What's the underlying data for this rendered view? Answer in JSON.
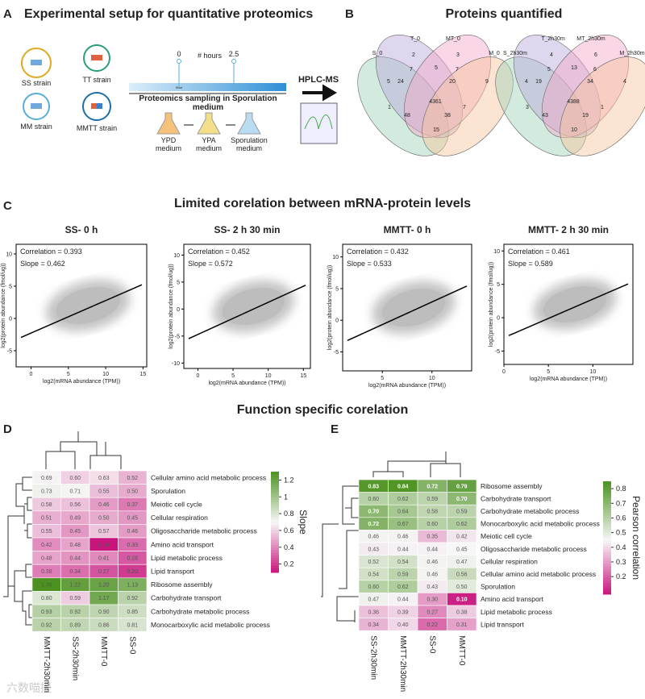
{
  "panel_a": {
    "letter": "A",
    "title": "Experimental setup for quantitative proteomics",
    "strains": [
      "SS strain",
      "TT strain",
      "MM strain",
      "MMTT strain"
    ],
    "hours_label": "# hours",
    "timepoints": [
      0,
      2.5
    ],
    "start": "Start",
    "sampling": "Proteomics sampling in Sporulation",
    "sampling2": "medium",
    "media": [
      [
        "YPD",
        "medium"
      ],
      [
        "YPA",
        "medium"
      ],
      [
        "Sporulation",
        "medium"
      ]
    ],
    "hplc": "HPLC-MS"
  },
  "panel_b": {
    "letter": "B",
    "title": "Proteins quantified",
    "venns": [
      {
        "sets": [
          "S_0",
          "T_0",
          "MT_0",
          "M_0"
        ],
        "regions": [
          5,
          2,
          3,
          9,
          7,
          5,
          7,
          24,
          20,
          4361,
          1,
          7,
          48,
          38,
          15
        ]
      },
      {
        "sets": [
          "S_2h30m",
          "T_2h30m",
          "MT_2h30m",
          "M_2h30m"
        ],
        "regions": [
          4,
          4,
          6,
          4,
          5,
          13,
          6,
          19,
          34,
          4388,
          3,
          1,
          43,
          19,
          10
        ]
      }
    ]
  },
  "panel_c": {
    "letter": "C",
    "title": "Limited corelation between mRNA-protein levels",
    "xlabel": "log2(mRNA abundance (TPM))",
    "ylabel": "log2(protein abundance (fmol/ug))",
    "plots": [
      {
        "title": "SS- 0 h",
        "correlation": "Correlation = 0.393",
        "slope": "Slope = 0.462",
        "xlim": [
          -2,
          15.5
        ],
        "xticks": [
          0,
          5,
          10,
          15
        ],
        "ylim": [
          -7.5,
          11.5
        ],
        "yticks": [
          -5,
          0,
          5,
          10
        ]
      },
      {
        "title": "SS- 2 h 30 min",
        "correlation": "Correlation = 0.452",
        "slope": "Slope = 0.572",
        "xlim": [
          -2,
          16
        ],
        "xticks": [
          0,
          5,
          10,
          15
        ],
        "ylim": [
          -11,
          12
        ],
        "yticks": [
          -10,
          -5,
          0,
          5,
          10
        ]
      },
      {
        "title": "MMTT- 0 h",
        "correlation": "Correlation = 0.432",
        "slope": "Slope = 0.533",
        "xlim": [
          1,
          14
        ],
        "xticks": [
          5,
          10
        ],
        "ylim": [
          -8,
          12
        ],
        "yticks": [
          -5,
          0,
          5,
          10
        ]
      },
      {
        "title": "MMTT- 2 h 30 min",
        "correlation": "Correlation = 0.461",
        "slope": "Slope = 0.589",
        "xlim": [
          0,
          14.5
        ],
        "xticks": [
          0,
          5,
          10
        ],
        "ylim": [
          -7,
          11
        ],
        "yticks": [
          -5,
          0,
          5,
          10
        ]
      }
    ]
  },
  "function_title": "Function specific corelation",
  "panel_d": {
    "letter": "D",
    "colorbar_label": "Slope",
    "colorbar_lim": [
      0.1,
      1.3
    ],
    "colorbar_ticks": [
      0.2,
      0.4,
      0.6,
      0.8,
      1,
      1.2
    ],
    "columns": [
      "MMTT-2h30min",
      "SS-2h30min",
      "MMTT-0",
      "SS-0"
    ],
    "rows": [
      "Cellular amino acid metabolic process",
      "Sporulation",
      "Meiotic cell cycle",
      "Cellular respiration",
      "Oligosaccharide metabolic process",
      "Amino acid transport",
      "Lipid metabolic process",
      "Lipid transport",
      "Ribosome assembly",
      "Carbohydrate transport",
      "Carbohydrate metabolic process",
      "Monocarboxylic acid metabolic process"
    ],
    "values": [
      [
        0.69,
        0.6,
        0.63,
        0.52
      ],
      [
        0.73,
        0.71,
        0.55,
        0.5
      ],
      [
        0.58,
        0.56,
        0.46,
        0.37
      ],
      [
        0.51,
        0.49,
        0.5,
        0.45
      ],
      [
        0.55,
        0.45,
        0.57,
        0.46
      ],
      [
        0.42,
        0.48,
        0.1,
        0.33
      ],
      [
        0.48,
        0.44,
        0.41,
        0.28
      ],
      [
        0.38,
        0.34,
        0.27,
        0.2
      ],
      [
        1.3,
        1.22,
        1.2,
        1.13
      ],
      [
        0.8,
        0.59,
        1.17,
        0.92
      ],
      [
        0.93,
        0.92,
        0.9,
        0.85
      ],
      [
        0.92,
        0.89,
        0.86,
        0.81
      ]
    ],
    "value_labels": [
      [
        "0.69",
        "0.60",
        "0.63",
        "0.52"
      ],
      [
        "0.73",
        "0.71",
        "0.55",
        "0.50"
      ],
      [
        "0.58",
        "0.56",
        "0.46",
        "0.37"
      ],
      [
        "0.51",
        "0.49",
        "0.50",
        "0.45"
      ],
      [
        "0.55",
        "0.45",
        "0.57",
        "0.46"
      ],
      [
        "0.42",
        "0.48",
        "0.10",
        "0.33"
      ],
      [
        "0.48",
        "0.44",
        "0.41",
        "0.28"
      ],
      [
        "0.38",
        "0.34",
        "0.27",
        "0.20"
      ],
      [
        "1.30",
        "1.22",
        "1.20",
        "1.13"
      ],
      [
        "0.80",
        "0.59",
        "1.17",
        "0.92"
      ],
      [
        "0.93",
        "0.92",
        "0.90",
        "0.85"
      ],
      [
        "0.92",
        "0.89",
        "0.86",
        "0.81"
      ]
    ]
  },
  "panel_e": {
    "letter": "E",
    "colorbar_label": "Pearson correlation",
    "colorbar_lim": [
      0.08,
      0.85
    ],
    "colorbar_ticks": [
      0.2,
      0.3,
      0.4,
      0.5,
      0.6,
      0.7,
      0.8
    ],
    "columns": [
      "SS-2h30min",
      "MMTT-2h30min",
      "SS-0",
      "MMTT-0"
    ],
    "rows": [
      "Ribosome assembly",
      "Carbohydrate transport",
      "Carbohydrate metabolic process",
      "Monocarboxylic acid metabolic process",
      "Meiotic cell cycle",
      "Oligosaccharide metabolic process",
      "Cellular respiration",
      "Cellular amino acid metabolic process",
      "Sporulation",
      "Amino acid transport",
      "Lipid metabolic process",
      "Lipid transport"
    ],
    "values": [
      [
        0.83,
        0.84,
        0.72,
        0.79
      ],
      [
        0.6,
        0.62,
        0.59,
        0.7
      ],
      [
        0.7,
        0.64,
        0.58,
        0.59
      ],
      [
        0.72,
        0.67,
        0.6,
        0.62
      ],
      [
        0.46,
        0.46,
        0.35,
        0.42
      ],
      [
        0.43,
        0.44,
        0.44,
        0.45
      ],
      [
        0.52,
        0.54,
        0.46,
        0.47
      ],
      [
        0.54,
        0.59,
        0.46,
        0.56
      ],
      [
        0.6,
        0.62,
        0.43,
        0.5
      ],
      [
        0.47,
        0.44,
        0.3,
        0.1
      ],
      [
        0.36,
        0.39,
        0.27,
        0.38
      ],
      [
        0.34,
        0.4,
        0.22,
        0.31
      ]
    ],
    "value_labels": [
      [
        "0.83",
        "0.84",
        "0.72",
        "0.79"
      ],
      [
        "0.60",
        "0.62",
        "0.59",
        "0.70"
      ],
      [
        "0.70",
        "0.64",
        "0.58",
        "0.59"
      ],
      [
        "0.72",
        "0.67",
        "0.60",
        "0.62"
      ],
      [
        "0.46",
        "0.46",
        "0.35",
        "0.42"
      ],
      [
        "0.43",
        "0.44",
        "0.44",
        "0.45"
      ],
      [
        "0.52",
        "0.54",
        "0.46",
        "0.47"
      ],
      [
        "0.54",
        "0.59",
        "0.46",
        "0.56"
      ],
      [
        "0.60",
        "0.62",
        "0.43",
        "0.50"
      ],
      [
        "0.47",
        "0.44",
        "0.30",
        "0.10"
      ],
      [
        "0.36",
        "0.39",
        "0.27",
        "0.38"
      ],
      [
        "0.34",
        "0.40",
        "0.22",
        "0.31"
      ]
    ]
  },
  "watermark": "六数喵提"
}
